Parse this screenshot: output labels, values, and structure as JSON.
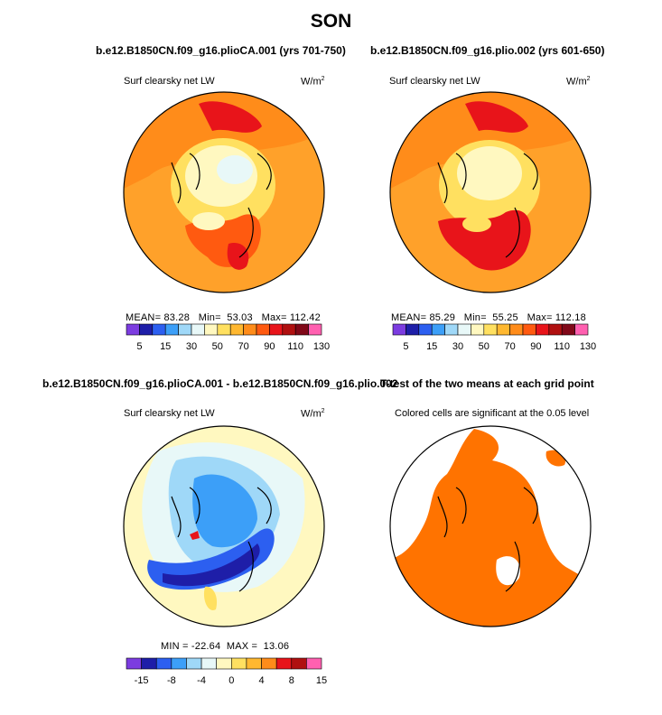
{
  "page_title": "SON",
  "chart_data": [
    {
      "type": "heatmap",
      "projection": "north-polar-stereographic",
      "title": "b.e12.B1850CN.f09_g16.plioCA.001 (yrs 701-750)",
      "variable_label": "Surf clearsky net LW",
      "units_base": "W/m",
      "units_exp": "2",
      "stats": {
        "mean_label": "MEAN=",
        "mean": "83.28",
        "min_label": "Min=",
        "min": "53.03",
        "max_label": "Max=",
        "max": "112.42"
      },
      "colorbar": {
        "levels": [
          "5",
          "15",
          "30",
          "50",
          "70",
          "90",
          "110",
          "130"
        ],
        "colors": [
          "#7c3ce0",
          "#1e1ea8",
          "#2c5ff0",
          "#3c9ff8",
          "#9fd8f8",
          "#e8f8f8",
          "#fff8c0",
          "#ffe060",
          "#ffb830",
          "#ff8c1a",
          "#ff5a10",
          "#e8141a",
          "#b01010",
          "#800818",
          "#ff60b0"
        ]
      }
    },
    {
      "type": "heatmap",
      "projection": "north-polar-stereographic",
      "title": "b.e12.B1850CN.f09_g16.plio.002 (yrs 601-650)",
      "variable_label": "Surf clearsky net LW",
      "units_base": "W/m",
      "units_exp": "2",
      "stats": {
        "mean_label": "MEAN=",
        "mean": "85.29",
        "min_label": "Min=",
        "min": "55.25",
        "max_label": "Max=",
        "max": "112.18"
      },
      "colorbar": {
        "levels": [
          "5",
          "15",
          "30",
          "50",
          "70",
          "90",
          "110",
          "130"
        ],
        "colors": [
          "#7c3ce0",
          "#1e1ea8",
          "#2c5ff0",
          "#3c9ff8",
          "#9fd8f8",
          "#e8f8f8",
          "#fff8c0",
          "#ffe060",
          "#ffb830",
          "#ff8c1a",
          "#ff5a10",
          "#e8141a",
          "#b01010",
          "#800818",
          "#ff60b0"
        ]
      }
    },
    {
      "type": "heatmap",
      "projection": "north-polar-stereographic",
      "title": "b.e12.B1850CN.f09_g16.plioCA.001 - b.e12.B1850CN.f09_g16.plio.002",
      "variable_label": "Surf clearsky net LW",
      "units_base": "W/m",
      "units_exp": "2",
      "stats": {
        "min_label": "MIN =",
        "min": "-22.64",
        "max_label": "MAX =",
        "max": "13.06"
      },
      "colorbar": {
        "levels": [
          "-15",
          "-8",
          "-4",
          "0",
          "4",
          "8",
          "15"
        ],
        "colors": [
          "#7c3ce0",
          "#1e1ea8",
          "#2c5ff0",
          "#3c9ff8",
          "#9fd8f8",
          "#e8f8f8",
          "#fff8c0",
          "#ffe060",
          "#ffb830",
          "#ff8c1a",
          "#e8141a",
          "#b01010",
          "#ff60b0"
        ]
      }
    },
    {
      "type": "heatmap",
      "projection": "north-polar-stereographic",
      "title": "T-test of the two means at each grid point",
      "subtitle": "Colored cells are significant at the 0.05 level",
      "significant_color": "#ff7300"
    }
  ]
}
